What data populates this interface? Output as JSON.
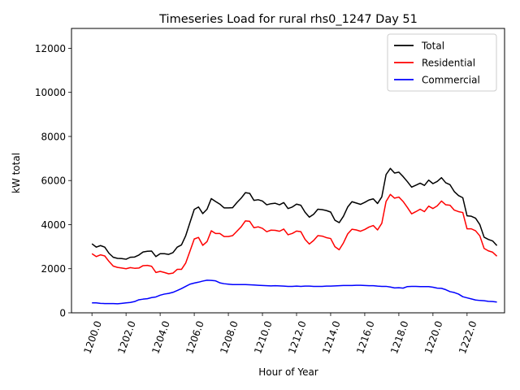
{
  "chart_data": {
    "type": "line",
    "title": "Timeseries Load for rural rhs0_1247  Day 51",
    "xlabel": "Hour of Year",
    "ylabel": "kW total",
    "xlim": [
      1198.8,
      1224.2
    ],
    "ylim": [
      0,
      12900
    ],
    "xticks": [
      1200,
      1202,
      1204,
      1206,
      1208,
      1210,
      1212,
      1214,
      1216,
      1218,
      1220,
      1222
    ],
    "xtick_labels": [
      "1200.0",
      "1202.0",
      "1204.0",
      "1206.0",
      "1208.0",
      "1210.0",
      "1212.0",
      "1214.0",
      "1216.0",
      "1218.0",
      "1220.0",
      "1222.0"
    ],
    "yticks": [
      0,
      2000,
      4000,
      6000,
      8000,
      10000,
      12000
    ],
    "ytick_labels": [
      "0",
      "2000",
      "4000",
      "6000",
      "8000",
      "10000",
      "12000"
    ],
    "legend_position": "top-right",
    "x_start": 1200,
    "x_step": 0.25,
    "series": [
      {
        "name": "Total",
        "color": "#000000",
        "values": [
          3130,
          2980,
          3050,
          2980,
          2700,
          2520,
          2470,
          2460,
          2430,
          2520,
          2530,
          2620,
          2760,
          2790,
          2800,
          2550,
          2680,
          2680,
          2650,
          2730,
          2980,
          3080,
          3500,
          4100,
          4690,
          4800,
          4500,
          4700,
          5180,
          5050,
          4930,
          4760,
          4760,
          4770,
          5000,
          5200,
          5450,
          5420,
          5100,
          5130,
          5070,
          4900,
          4950,
          4970,
          4900,
          5000,
          4730,
          4800,
          4930,
          4880,
          4560,
          4340,
          4470,
          4700,
          4680,
          4640,
          4570,
          4200,
          4090,
          4380,
          4800,
          5040,
          4980,
          4920,
          5010,
          5120,
          5170,
          4960,
          5260,
          6270,
          6550,
          6340,
          6380,
          6180,
          5950,
          5700,
          5790,
          5880,
          5780,
          6020,
          5860,
          5960,
          6130,
          5900,
          5810,
          5500,
          5320,
          5220,
          4400,
          4380,
          4290,
          4000,
          3430,
          3330,
          3260,
          3050
        ]
      },
      {
        "name": "Residential",
        "color": "#ff0000",
        "values": [
          2680,
          2550,
          2630,
          2580,
          2330,
          2120,
          2060,
          2030,
          2000,
          2050,
          2020,
          2030,
          2140,
          2150,
          2110,
          1830,
          1880,
          1830,
          1770,
          1800,
          1970,
          1970,
          2260,
          2800,
          3350,
          3420,
          3060,
          3230,
          3720,
          3600,
          3600,
          3460,
          3460,
          3500,
          3700,
          3900,
          4170,
          4150,
          3860,
          3900,
          3830,
          3680,
          3750,
          3740,
          3700,
          3800,
          3540,
          3600,
          3710,
          3680,
          3330,
          3120,
          3280,
          3500,
          3480,
          3410,
          3370,
          3000,
          2860,
          3170,
          3580,
          3790,
          3760,
          3700,
          3780,
          3890,
          3960,
          3760,
          4060,
          5050,
          5370,
          5200,
          5250,
          5050,
          4780,
          4490,
          4590,
          4700,
          4590,
          4840,
          4730,
          4850,
          5070,
          4900,
          4880,
          4660,
          4590,
          4550,
          3810,
          3810,
          3720,
          3490,
          2920,
          2810,
          2750,
          2570
        ]
      },
      {
        "name": "Commercial",
        "color": "#0000ff",
        "values": [
          450,
          450,
          430,
          420,
          420,
          420,
          410,
          430,
          450,
          470,
          510,
          590,
          620,
          640,
          690,
          720,
          800,
          850,
          880,
          930,
          1010,
          1100,
          1200,
          1300,
          1350,
          1390,
          1440,
          1480,
          1470,
          1450,
          1360,
          1320,
          1300,
          1280,
          1280,
          1280,
          1280,
          1270,
          1260,
          1250,
          1240,
          1230,
          1220,
          1230,
          1220,
          1210,
          1200,
          1200,
          1210,
          1200,
          1210,
          1210,
          1200,
          1200,
          1200,
          1210,
          1210,
          1220,
          1230,
          1240,
          1240,
          1240,
          1250,
          1250,
          1240,
          1230,
          1230,
          1210,
          1200,
          1200,
          1170,
          1130,
          1140,
          1120,
          1190,
          1200,
          1200,
          1190,
          1190,
          1190,
          1160,
          1120,
          1110,
          1050,
          960,
          920,
          850,
          730,
          680,
          630,
          580,
          560,
          550,
          520,
          510,
          490
        ]
      }
    ]
  }
}
